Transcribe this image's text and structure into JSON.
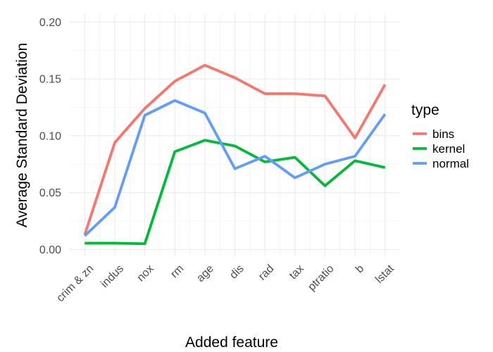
{
  "chart_data": {
    "type": "line",
    "xlabel": "Added feature",
    "ylabel": "Average Standard Deviation",
    "categories": [
      "crim & zn",
      "indus",
      "nox",
      "rm",
      "age",
      "dis",
      "rad",
      "tax",
      "ptratio",
      "b",
      "lstat"
    ],
    "ylim": [
      -0.006,
      0.207
    ],
    "yticks": [
      0.0,
      0.05,
      0.1,
      0.15,
      0.2
    ],
    "ytick_labels": [
      "0.00",
      "0.05",
      "0.10",
      "0.15",
      "0.20"
    ],
    "grid": true,
    "legend": {
      "title": "type",
      "position": "right"
    },
    "series": [
      {
        "name": "bins",
        "color": "#F8766D",
        "values": [
          0.013,
          0.094,
          0.124,
          0.148,
          0.162,
          0.151,
          0.137,
          0.137,
          0.135,
          0.098,
          0.145
        ]
      },
      {
        "name": "kernel",
        "color": "#00BA38",
        "values": [
          0.0055,
          0.0055,
          0.005,
          0.086,
          0.096,
          0.091,
          0.077,
          0.081,
          0.056,
          0.078,
          0.072
        ]
      },
      {
        "name": "normal",
        "color": "#619CFF",
        "values": [
          0.012,
          0.037,
          0.118,
          0.131,
          0.12,
          0.071,
          0.082,
          0.063,
          0.075,
          0.082,
          0.119
        ]
      }
    ]
  }
}
